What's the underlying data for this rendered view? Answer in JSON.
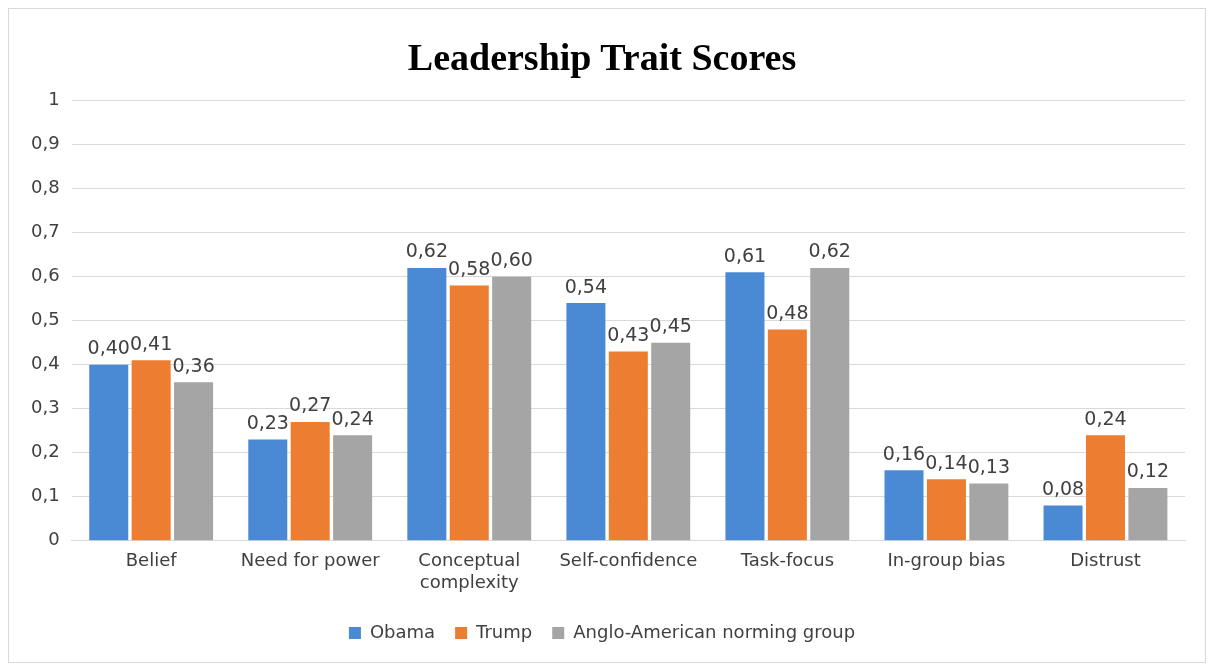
{
  "chart_data": {
    "type": "bar",
    "title": "Leadership Trait Scores",
    "categories": [
      "Belief",
      "Need for power",
      "Conceptual complexity",
      "Self-confidence",
      "Task-focus",
      "In-group bias",
      "Distrust"
    ],
    "series": [
      {
        "name": "Obama",
        "color": "#4a8ad4",
        "values": [
          0.4,
          0.23,
          0.62,
          0.54,
          0.61,
          0.16,
          0.08
        ],
        "value_labels": [
          "0,40",
          "0,23",
          "0,62",
          "0,54",
          "0,61",
          "0,16",
          "0,08"
        ]
      },
      {
        "name": "Trump",
        "color": "#ed7d31",
        "values": [
          0.41,
          0.27,
          0.58,
          0.43,
          0.48,
          0.14,
          0.24
        ],
        "value_labels": [
          "0,41",
          "0,27",
          "0,58",
          "0,43",
          "0,48",
          "0,14",
          "0,24"
        ]
      },
      {
        "name": "Anglo-American norming group",
        "color": "#a5a5a5",
        "values": [
          0.36,
          0.24,
          0.6,
          0.45,
          0.62,
          0.13,
          0.12
        ],
        "value_labels": [
          "0,36",
          "0,24",
          "0,60",
          "0,45",
          "0,62",
          "0,13",
          "0,12"
        ]
      }
    ],
    "ylim": [
      0,
      1
    ],
    "yticks": [
      0,
      {
        "value": 0.1,
        "label": "0,1"
      },
      {
        "value": 0.2,
        "label": "0,2"
      },
      {
        "value": 0.3,
        "label": "0,3"
      },
      {
        "value": 0.4,
        "label": "0,4"
      },
      {
        "value": 0.5,
        "label": "0,5"
      },
      {
        "value": 0.6,
        "label": "0,6"
      },
      {
        "value": 0.7,
        "label": "0,7"
      },
      {
        "value": 0.8,
        "label": "0,8"
      },
      {
        "value": 0.9,
        "label": "0,9"
      },
      1
    ],
    "grid": "y",
    "legend": "bottom"
  }
}
